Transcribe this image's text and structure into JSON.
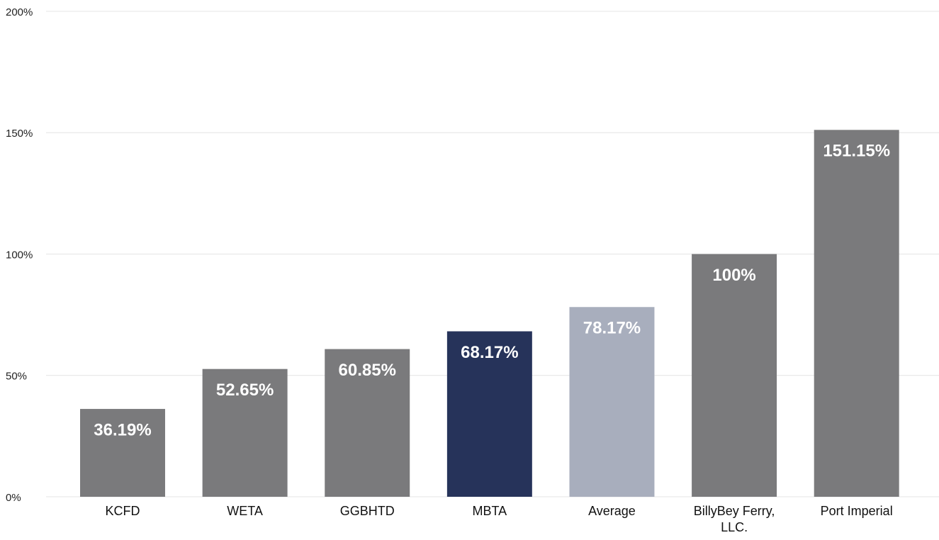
{
  "chart_data": {
    "type": "bar",
    "categories": [
      "KCFD",
      "WETA",
      "GGBHTD",
      "MBTA",
      "Average",
      "BillyBey Ferry, LLC.",
      "Port Imperial"
    ],
    "values": [
      36.19,
      52.65,
      60.85,
      68.17,
      78.17,
      100,
      151.15
    ],
    "value_labels": [
      "36.19%",
      "52.65%",
      "60.85%",
      "68.17%",
      "78.17%",
      "100%",
      "151.15%"
    ],
    "colors": [
      "#7a7a7c",
      "#7a7a7c",
      "#7a7a7c",
      "#26335a",
      "#a8aebd",
      "#7a7a7c",
      "#7a7a7c"
    ],
    "ylim": [
      0,
      200
    ],
    "yticks": [
      {
        "value": 0,
        "label": "0%"
      },
      {
        "value": 50,
        "label": "50%"
      },
      {
        "value": 100,
        "label": "100%"
      },
      {
        "value": 150,
        "label": "150%"
      },
      {
        "value": 200,
        "label": "200%"
      }
    ],
    "grid": true
  }
}
